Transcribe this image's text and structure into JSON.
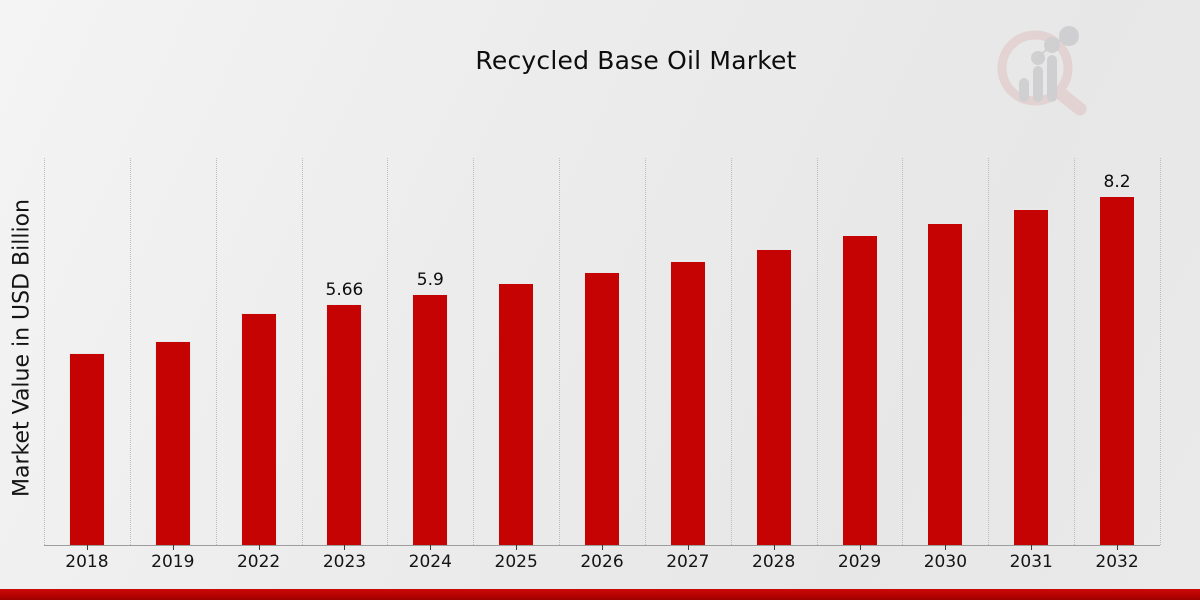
{
  "title": "Recycled Base Oil Market",
  "watermark_icon": "magnifier-bar-chart-logo",
  "accent_colors": {
    "bar": "#c60303",
    "bottom_stripe": "#b30000",
    "logo_ring": "#d9a8a8",
    "logo_gray": "#9fa0a4"
  },
  "chart_data": {
    "type": "bar",
    "title": "Recycled Base Oil Market",
    "xlabel": "",
    "ylabel": "Market Value in USD Billion",
    "categories": [
      "2018",
      "2019",
      "2022",
      "2023",
      "2024",
      "2025",
      "2026",
      "2027",
      "2028",
      "2029",
      "2030",
      "2031",
      "2032"
    ],
    "values": [
      4.51,
      4.79,
      5.45,
      5.66,
      5.9,
      6.15,
      6.43,
      6.69,
      6.97,
      7.28,
      7.58,
      7.89,
      8.2
    ],
    "data_labels": [
      "",
      "",
      "",
      "5.66",
      "5.9",
      "",
      "",
      "",
      "",
      "",
      "",
      "",
      "8.2"
    ],
    "ylim": [
      0,
      9.1
    ],
    "grid": "vertical-dotted",
    "legend": "none",
    "bar_color": "#c60303"
  }
}
